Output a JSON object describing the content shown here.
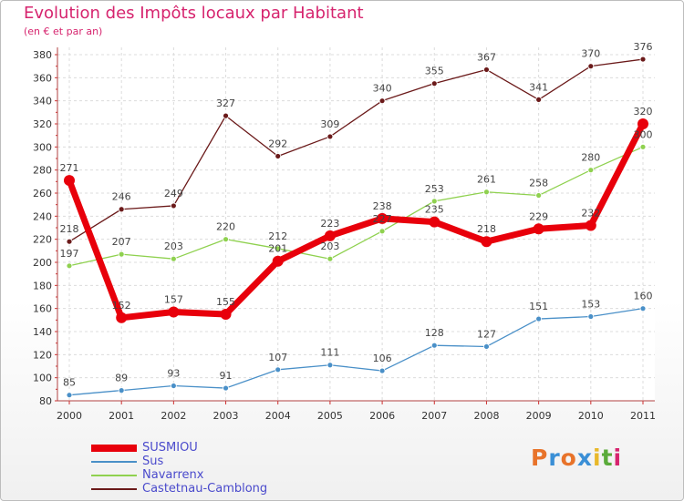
{
  "title": "Evolution des Impôts locaux par Habitant",
  "subtitle": "(en € et par an)",
  "logo_text": "Proxiti",
  "logo_colors": [
    "#e8732a",
    "#3a8fd6",
    "#e8732a",
    "#3a8fd6",
    "#e8b82a",
    "#5aab3a",
    "#d6246e"
  ],
  "chart_data": {
    "type": "line",
    "title": "Evolution des Impôts locaux par Habitant",
    "subtitle": "(en € et par an)",
    "xlabel": "",
    "ylabel": "",
    "x": [
      "2000",
      "2001",
      "2002",
      "2003",
      "2004",
      "2005",
      "2006",
      "2007",
      "2008",
      "2009",
      "2010",
      "2011"
    ],
    "ylim": [
      80,
      380
    ],
    "yticks": [
      80,
      100,
      120,
      140,
      160,
      180,
      200,
      220,
      240,
      260,
      280,
      300,
      320,
      340,
      360,
      380
    ],
    "grid": true,
    "legend": "bottom-left",
    "series": [
      {
        "name": "SUSMIOU",
        "color": "#e8000b",
        "values": [
          271,
          152,
          157,
          155,
          201,
          223,
          238,
          235,
          218,
          229,
          232,
          320
        ],
        "labels": [
          "271",
          "152",
          "157",
          "155",
          "201",
          "223",
          "238",
          "235",
          "218",
          "229",
          "232",
          "320"
        ]
      },
      {
        "name": "Sus",
        "color": "#4a90c8",
        "values": [
          85,
          89,
          93,
          91,
          107,
          111,
          106,
          128,
          127,
          151,
          153,
          160
        ],
        "labels": [
          "85",
          "89",
          "93",
          "91",
          "107",
          "111",
          "106",
          "128",
          "127",
          "151",
          "153",
          "160"
        ]
      },
      {
        "name": "Navarrenx",
        "color": "#8fd14f",
        "values": [
          197,
          207,
          203,
          220,
          212,
          203,
          227,
          253,
          261,
          258,
          280,
          300
        ],
        "labels": [
          "197",
          "207",
          "203",
          "220",
          "212",
          "203",
          "227",
          "253",
          "261",
          "258",
          "280",
          "300"
        ]
      },
      {
        "name": "Castetnau-Camblong",
        "color": "#6b1a1a",
        "values": [
          218,
          246,
          249,
          327,
          292,
          309,
          340,
          355,
          367,
          341,
          370,
          376
        ],
        "labels": [
          "218",
          "246",
          "249",
          "327",
          "292",
          "309",
          "340",
          "355",
          "367",
          "341",
          "370",
          "376"
        ]
      }
    ]
  }
}
